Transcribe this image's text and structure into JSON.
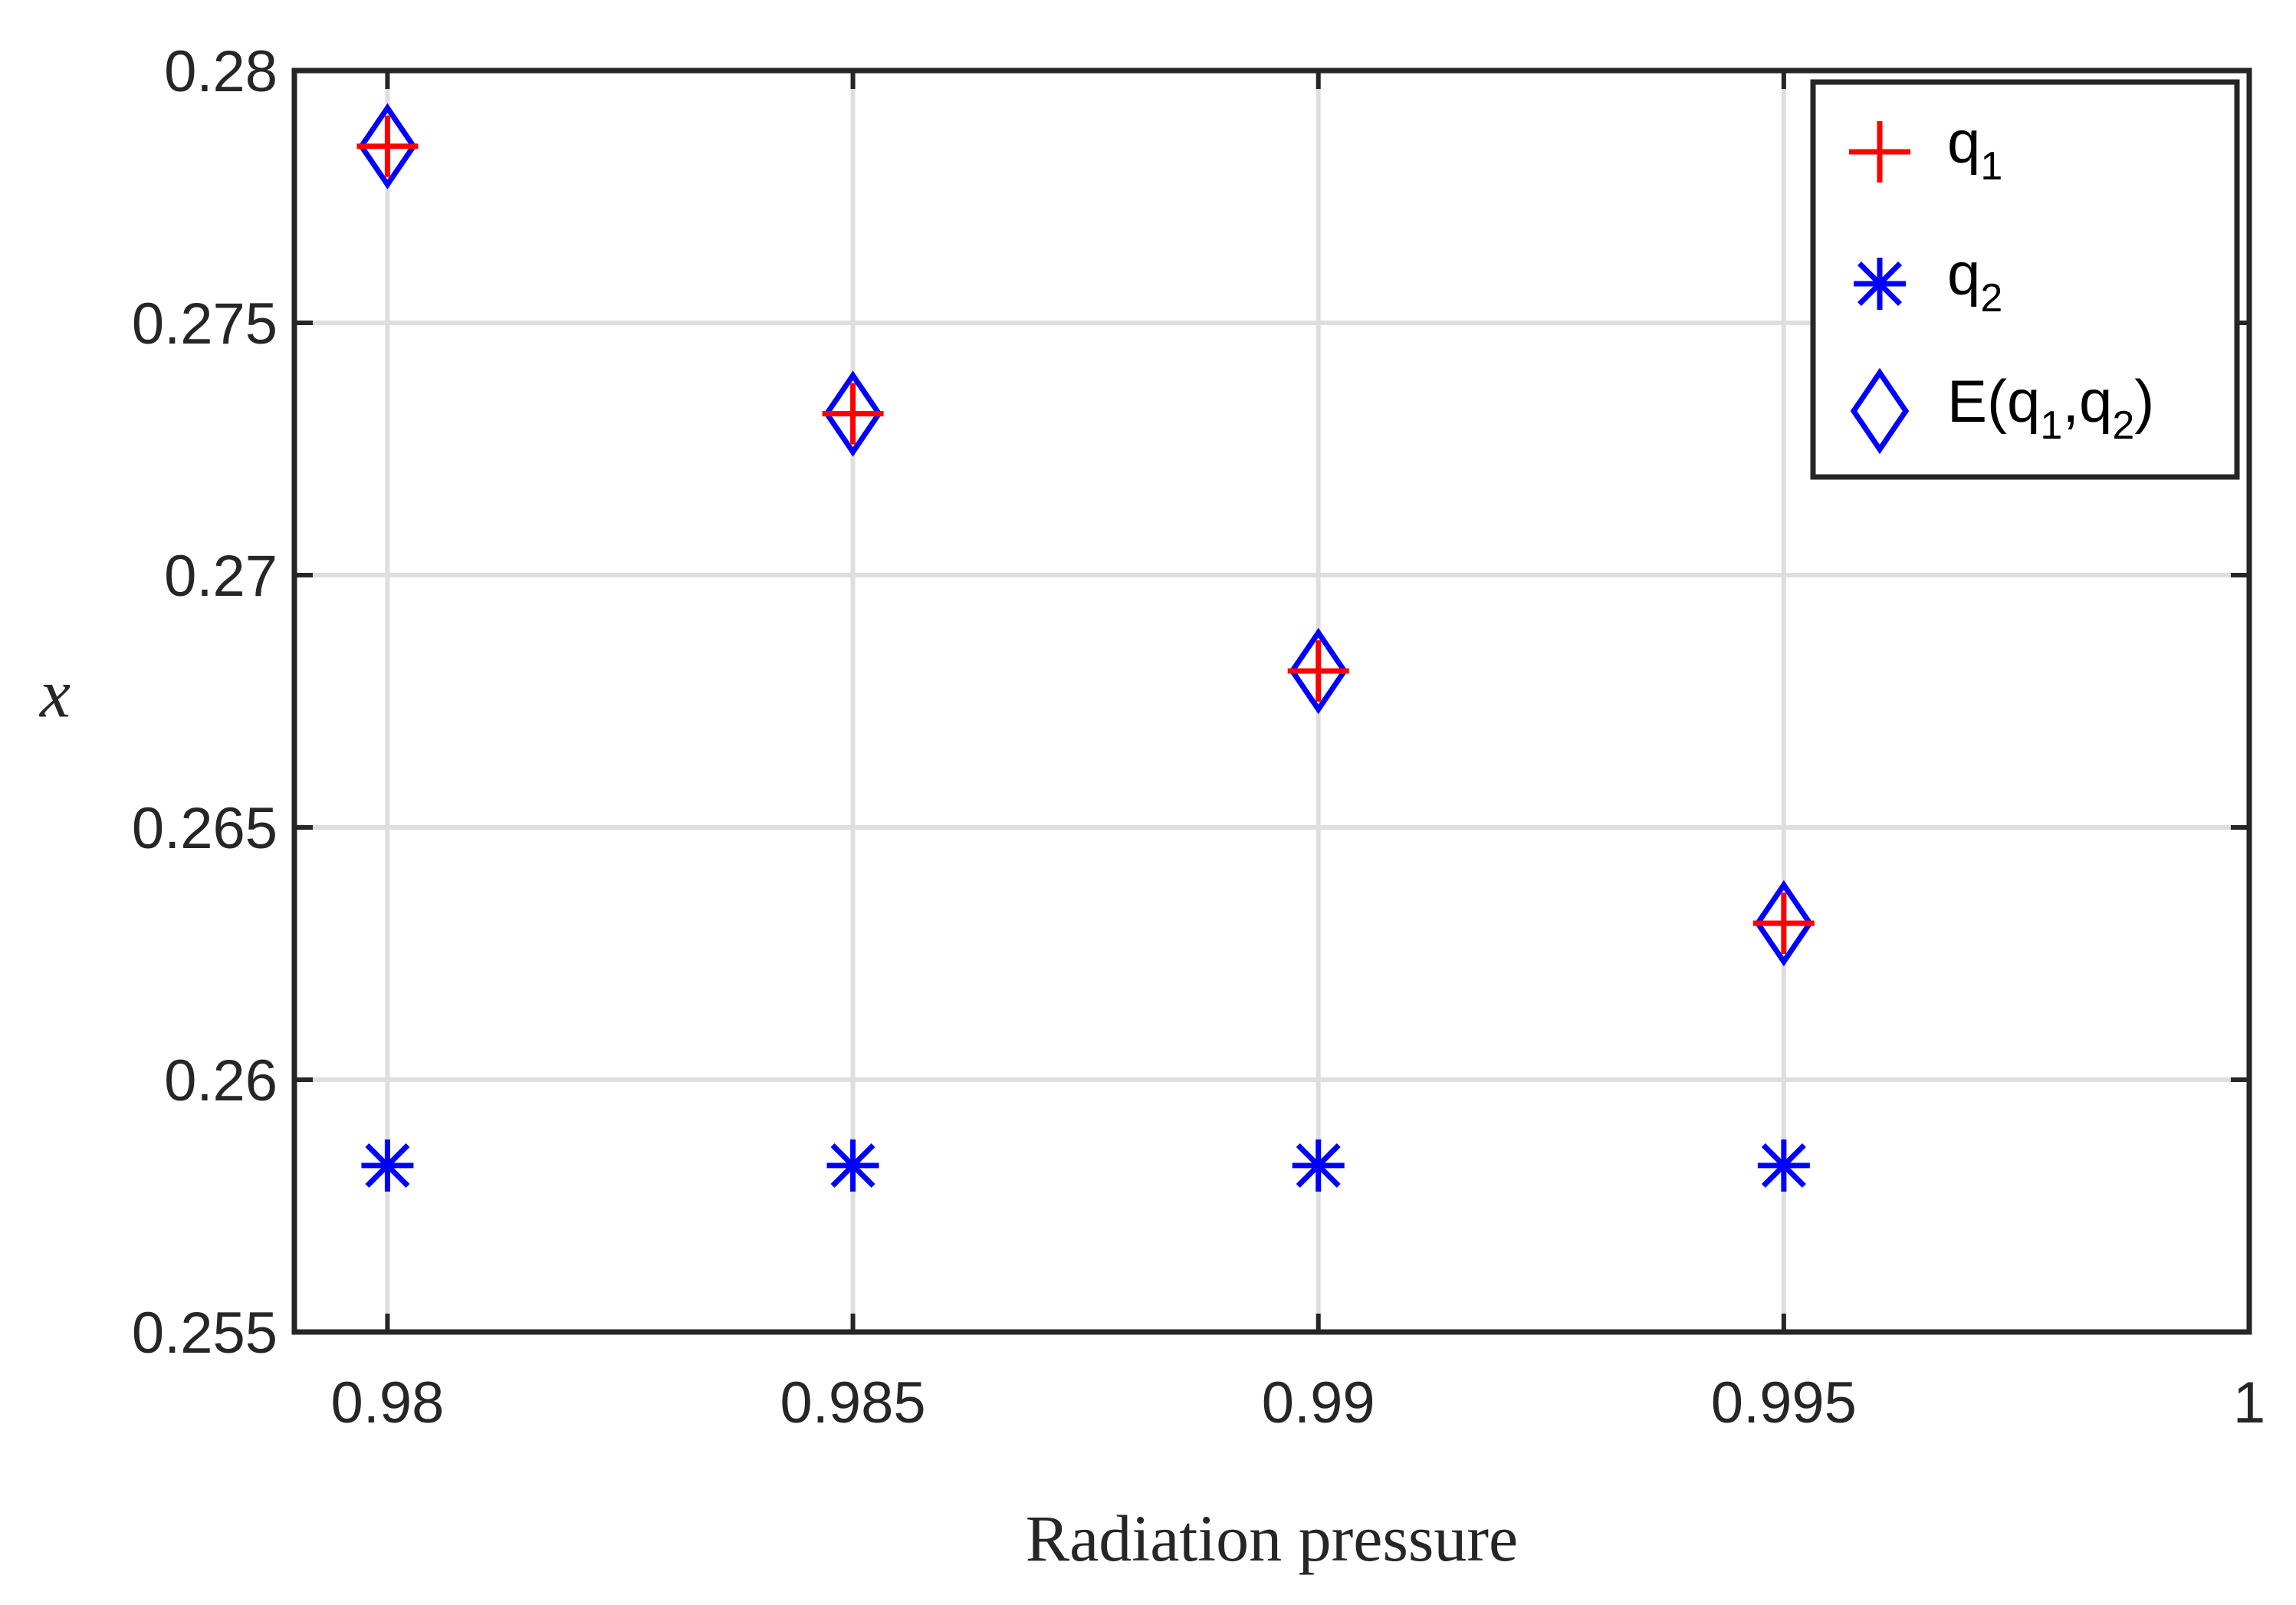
{
  "chart_data": {
    "type": "scatter",
    "title": "",
    "xlabel": "Radiation pressure",
    "ylabel": "x",
    "xlim": [
      0.979,
      1.0
    ],
    "ylim": [
      0.255,
      0.28
    ],
    "grid": true,
    "legend_location": "top-right",
    "x_ticks": [
      0.98,
      0.985,
      0.99,
      0.995,
      1.0
    ],
    "x_tick_labels": [
      "0.98",
      "0.985",
      "0.99",
      "0.995",
      "1"
    ],
    "y_ticks": [
      0.255,
      0.26,
      0.265,
      0.27,
      0.275,
      0.28
    ],
    "y_tick_labels": [
      "0.255",
      "0.26",
      "0.265",
      "0.27",
      "0.275",
      "0.28"
    ],
    "series": [
      {
        "name": "q1",
        "legend_main": "q",
        "legend_sub": "1",
        "marker": "plus",
        "color": "#ff0000",
        "x": [
          0.98,
          0.985,
          0.99,
          0.995
        ],
        "y": [
          0.2785,
          0.2732,
          0.2681,
          0.2631
        ]
      },
      {
        "name": "q2",
        "legend_main": "q",
        "legend_sub": "2",
        "marker": "asterisk",
        "color": "#0000ff",
        "x": [
          0.98,
          0.985,
          0.99,
          0.995
        ],
        "y": [
          0.2583,
          0.2583,
          0.2583,
          0.2583
        ]
      },
      {
        "name": "E(q1,q2)",
        "legend_parts": [
          "E(q",
          "1",
          ",q",
          "2",
          ")"
        ],
        "marker": "diamond",
        "color": "#0000ff",
        "x": [
          0.98,
          0.985,
          0.99,
          0.995
        ],
        "y": [
          0.2785,
          0.2732,
          0.2681,
          0.2631
        ]
      }
    ]
  }
}
